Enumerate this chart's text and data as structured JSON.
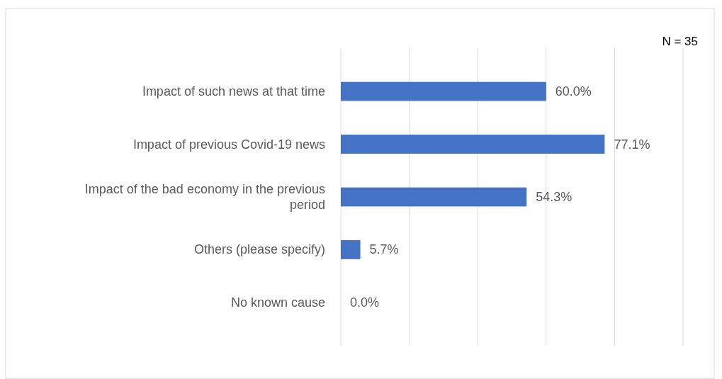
{
  "chart_data": {
    "type": "bar",
    "orientation": "horizontal",
    "categories": [
      "Impact of such news at that time",
      "Impact of previous Covid-19 news",
      "Impact of the bad economy in the previous period",
      "Others (please specify)",
      "No known cause"
    ],
    "values": [
      60.0,
      77.1,
      54.3,
      5.7,
      0.0
    ],
    "value_labels": [
      "60.0%",
      "77.1%",
      "54.3%",
      "5.7%",
      "0.0%"
    ],
    "color": "#4472c4",
    "xlim": [
      0,
      100
    ],
    "xticks": [
      {
        "value": 0,
        "label": null
      },
      {
        "value": 20,
        "label": null
      },
      {
        "value": 40,
        "label": null
      },
      {
        "value": 60,
        "label": null
      },
      {
        "value": 80,
        "label": null
      },
      {
        "value": 100,
        "label": null
      }
    ],
    "grid": "x",
    "tick_labels": "y",
    "annotations": [
      "N = 35"
    ]
  }
}
